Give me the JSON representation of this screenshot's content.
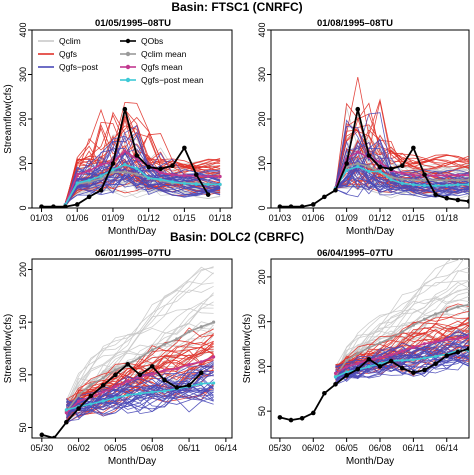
{
  "basins": [
    {
      "title": "Basin: FTSC1 (CNRFC)"
    },
    {
      "title": "Basin: DOLC2 (CBRFC)"
    }
  ],
  "legend": {
    "items": [
      {
        "label": "Qclim",
        "color": "#c9c9c9",
        "marker": false
      },
      {
        "label": "Qgfs",
        "color": "#e0322a",
        "marker": false
      },
      {
        "label": "Qgfs−post",
        "color": "#4a4ab8",
        "marker": false
      },
      {
        "label": "QObs",
        "color": "#000000",
        "marker": true
      },
      {
        "label": "Qclim mean",
        "color": "#9a9a9a",
        "marker": true
      },
      {
        "label": "Qgfs mean",
        "color": "#c2388f",
        "marker": true
      },
      {
        "label": "Qgfs−post mean",
        "color": "#3ec9d6",
        "marker": true
      }
    ]
  },
  "chart_data": [
    {
      "type": "line",
      "basin": "Basin: FTSC1 (CNRFC)",
      "title": "01/05/1995–08TU",
      "xlabel": "Month/Day",
      "ylabel": "Streamflow(cfs)",
      "ylim": [
        0,
        400
      ],
      "yticks": [
        0,
        100,
        200,
        300,
        400
      ],
      "xticklabels": [
        "01/03",
        "01/06",
        "01/09",
        "01/12",
        "01/15",
        "01/18"
      ],
      "xtick_days": [
        0,
        3,
        6,
        9,
        12,
        15
      ],
      "xlim": [
        -0.8,
        16
      ],
      "obs": {
        "name": "QObs",
        "x": [
          0,
          1,
          2,
          3,
          4,
          5,
          6,
          7,
          8,
          9,
          10,
          11,
          12,
          13,
          14
        ],
        "y": [
          3,
          3,
          3,
          8,
          25,
          40,
          100,
          222,
          118,
          92,
          88,
          95,
          135,
          75,
          30
        ]
      },
      "ensemble": {
        "start": 2,
        "end": 15,
        "n_clim": 28,
        "n_gfs": 30,
        "n_post": 30
      }
    },
    {
      "type": "line",
      "basin": "Basin: FTSC1 (CNRFC)",
      "title": "01/08/1995–08TU",
      "xlabel": "Month/Day",
      "ylabel": "",
      "ylim": [
        0,
        400
      ],
      "yticks": [
        0,
        100,
        200,
        300,
        400
      ],
      "xticklabels": [
        "01/03",
        "01/06",
        "01/09",
        "01/12",
        "01/15",
        "01/18"
      ],
      "xtick_days": [
        0,
        3,
        6,
        9,
        12,
        15
      ],
      "xlim": [
        -0.8,
        17
      ],
      "obs": {
        "name": "QObs",
        "x": [
          0,
          1,
          2,
          3,
          4,
          5,
          6,
          7,
          8,
          9,
          10,
          11,
          12,
          13,
          14,
          15,
          16,
          17
        ],
        "y": [
          3,
          3,
          3,
          8,
          25,
          40,
          100,
          222,
          118,
          92,
          88,
          95,
          135,
          75,
          30,
          22,
          18,
          15
        ]
      },
      "ensemble": {
        "start": 5,
        "end": 17,
        "n_clim": 28,
        "n_gfs": 30,
        "n_post": 30
      }
    },
    {
      "type": "line",
      "basin": "Basin: DOLC2 (CBRFC)",
      "title": "06/01/1995–07TU",
      "xlabel": "Month/Day",
      "ylabel": "Streamflow(cfs)",
      "ylim": [
        40,
        210
      ],
      "yticks": [
        50,
        100,
        150,
        200
      ],
      "xticklabels": [
        "05/30",
        "06/02",
        "06/05",
        "06/08",
        "06/11",
        "06/14"
      ],
      "xtick_days": [
        0,
        3,
        6,
        9,
        12,
        15
      ],
      "xlim": [
        -0.8,
        15.5
      ],
      "obs": {
        "name": "QObs",
        "x": [
          0,
          1,
          2,
          3,
          4,
          5,
          6,
          7,
          8,
          9,
          10,
          11,
          12,
          13
        ],
        "y": [
          43,
          40,
          55,
          68,
          80,
          90,
          100,
          110,
          100,
          108,
          95,
          88,
          90,
          102
        ]
      },
      "ensemble": {
        "start": 2,
        "end": 14,
        "n_clim": 28,
        "n_gfs": 30,
        "n_post": 30
      }
    },
    {
      "type": "line",
      "basin": "Basin: DOLC2 (CBRFC)",
      "title": "06/04/1995–07TU",
      "xlabel": "Month/Day",
      "ylabel": "Streamflow(cfs)",
      "ylim": [
        20,
        220
      ],
      "yticks": [
        50,
        100,
        150,
        200
      ],
      "xticklabels": [
        "05/30",
        "06/02",
        "06/05",
        "06/08",
        "06/11",
        "06/14"
      ],
      "xtick_days": [
        0,
        3,
        6,
        9,
        12,
        15
      ],
      "xlim": [
        -0.8,
        17
      ],
      "obs": {
        "name": "QObs",
        "x": [
          0,
          1,
          2,
          3,
          4,
          5,
          6,
          7,
          8,
          9,
          10,
          11,
          12,
          13,
          14,
          15,
          16,
          17
        ],
        "y": [
          43,
          40,
          42,
          48,
          70,
          80,
          90,
          97,
          108,
          100,
          106,
          98,
          93,
          96,
          103,
          112,
          116,
          120
        ]
      },
      "ensemble": {
        "start": 5,
        "end": 17,
        "n_clim": 28,
        "n_gfs": 30,
        "n_post": 30
      }
    }
  ]
}
